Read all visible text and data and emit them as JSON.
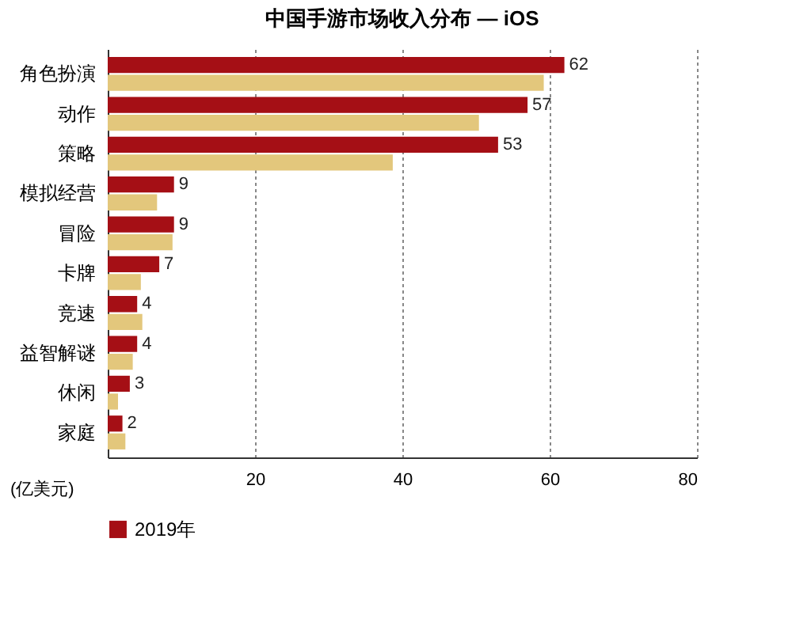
{
  "chart_data": {
    "type": "bar",
    "orientation": "horizontal",
    "title": "中国手游市场收入分布 — iOS",
    "xlabel": "(亿美元)",
    "categories": [
      "角色扮演",
      "动作",
      "策略",
      "模拟经营",
      "冒险",
      "卡牌",
      "竞速",
      "益智解谜",
      "休闲",
      "家庭"
    ],
    "series": [
      {
        "name": "2019年",
        "color": "#a50f15",
        "values": [
          62,
          57,
          53,
          9,
          9,
          7,
          4,
          4,
          3,
          2
        ],
        "value_labels": [
          "62",
          "57",
          "53",
          "9",
          "9",
          "7",
          "4",
          "4",
          "3",
          "2"
        ]
      },
      {
        "color": "#e3c77c",
        "values": [
          59.2,
          50.4,
          38.7,
          6.7,
          8.8,
          4.5,
          4.7,
          3.4,
          1.4,
          2.4
        ]
      }
    ],
    "xlim": [
      0,
      80
    ],
    "xticks": [
      20,
      40,
      60,
      80
    ],
    "grid": "x",
    "legend": "bottom"
  }
}
